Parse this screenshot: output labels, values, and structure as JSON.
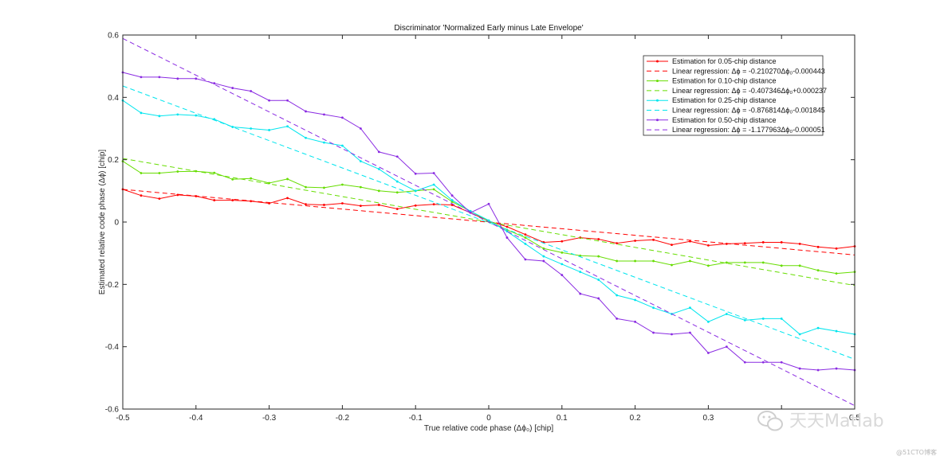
{
  "chart_data": {
    "type": "line",
    "title": "Discriminator 'Normalized Early minus Late Envelope'",
    "xlabel": "True relative code phase (Δϕ₀) [chip]",
    "ylabel": "Estimated relative code phase (Δϕ) [chip]",
    "xlim": [
      -0.5,
      0.5
    ],
    "ylim": [
      -0.6,
      0.6
    ],
    "xticks": [
      -0.5,
      -0.4,
      -0.3,
      -0.2,
      -0.1,
      0,
      0.1,
      0.2,
      0.3,
      0.4,
      0.5
    ],
    "xtick_labels": [
      "-0.5",
      "-0.4",
      "-0.3",
      "-0.2",
      "-0.1",
      "0",
      "0.1",
      "0.2",
      "0.3",
      "",
      "0.5"
    ],
    "yticks": [
      -0.6,
      -0.4,
      -0.2,
      0,
      0.2,
      0.4,
      0.6
    ],
    "ytick_labels": [
      "-0.6",
      "-0.4",
      "-0.2",
      "0",
      "0.2",
      "0.4",
      "0.6"
    ],
    "grid": false,
    "legend_position": "top-right",
    "x": [
      -0.5,
      -0.475,
      -0.45,
      -0.425,
      -0.4,
      -0.375,
      -0.35,
      -0.325,
      -0.3,
      -0.275,
      -0.25,
      -0.225,
      -0.2,
      -0.175,
      -0.15,
      -0.125,
      -0.1,
      -0.075,
      -0.05,
      -0.025,
      0,
      0.025,
      0.05,
      0.075,
      0.1,
      0.125,
      0.15,
      0.175,
      0.2,
      0.225,
      0.25,
      0.275,
      0.3,
      0.325,
      0.35,
      0.375,
      0.4,
      0.425,
      0.45,
      0.475,
      0.5
    ],
    "series": [
      {
        "name": "Estimation for 0.05-chip distance",
        "kind": "estimation",
        "color": "#ff0000",
        "markers": true,
        "values": [
          0.105,
          0.085,
          0.075,
          0.087,
          0.083,
          0.07,
          0.07,
          0.067,
          0.06,
          0.077,
          0.057,
          0.055,
          0.06,
          0.052,
          0.055,
          0.042,
          0.053,
          0.057,
          0.055,
          0.03,
          0.003,
          -0.015,
          -0.04,
          -0.065,
          -0.062,
          -0.05,
          -0.055,
          -0.068,
          -0.06,
          -0.057,
          -0.073,
          -0.062,
          -0.075,
          -0.07,
          -0.068,
          -0.065,
          -0.065,
          -0.07,
          -0.08,
          -0.085,
          -0.078
        ]
      },
      {
        "name": "Linear regression: Δϕ = -0.210270Δϕ₀-0.000443",
        "kind": "regression",
        "color": "#ff0000",
        "slope": -0.21027,
        "intercept": -0.000443
      },
      {
        "name": "Estimation for 0.10-chip distance",
        "kind": "estimation",
        "color": "#66dd00",
        "markers": true,
        "values": [
          0.195,
          0.157,
          0.157,
          0.162,
          0.163,
          0.158,
          0.137,
          0.14,
          0.125,
          0.138,
          0.112,
          0.11,
          0.12,
          0.112,
          0.1,
          0.095,
          0.1,
          0.105,
          0.065,
          0.035,
          0.003,
          -0.025,
          -0.05,
          -0.085,
          -0.098,
          -0.108,
          -0.11,
          -0.125,
          -0.125,
          -0.125,
          -0.138,
          -0.125,
          -0.14,
          -0.13,
          -0.13,
          -0.13,
          -0.14,
          -0.14,
          -0.155,
          -0.165,
          -0.16
        ]
      },
      {
        "name": "Linear regression: Δϕ = -0.407346Δϕ₀+0.000237",
        "kind": "regression",
        "color": "#66dd00",
        "slope": -0.407346,
        "intercept": 0.000237
      },
      {
        "name": "Estimation for 0.25-chip distance",
        "kind": "estimation",
        "color": "#00e5ee",
        "markers": true,
        "values": [
          0.39,
          0.35,
          0.34,
          0.345,
          0.342,
          0.33,
          0.305,
          0.3,
          0.295,
          0.307,
          0.27,
          0.255,
          0.245,
          0.195,
          0.17,
          0.13,
          0.1,
          0.12,
          0.07,
          0.035,
          0.005,
          -0.03,
          -0.07,
          -0.11,
          -0.135,
          -0.16,
          -0.185,
          -0.235,
          -0.25,
          -0.275,
          -0.295,
          -0.275,
          -0.32,
          -0.295,
          -0.315,
          -0.31,
          -0.31,
          -0.36,
          -0.34,
          -0.35,
          -0.36
        ]
      },
      {
        "name": "Linear regression: Δϕ = -0.876814Δϕ₀-0.001845",
        "kind": "regression",
        "color": "#00e5ee",
        "slope": -0.876814,
        "intercept": -0.001845
      },
      {
        "name": "Estimation for 0.50-chip distance",
        "kind": "estimation",
        "color": "#8a2be2",
        "markers": true,
        "values": [
          0.48,
          0.465,
          0.465,
          0.46,
          0.46,
          0.445,
          0.43,
          0.42,
          0.39,
          0.39,
          0.355,
          0.345,
          0.335,
          0.3,
          0.225,
          0.21,
          0.155,
          0.157,
          0.085,
          0.03,
          0.058,
          -0.05,
          -0.12,
          -0.125,
          -0.17,
          -0.23,
          -0.245,
          -0.31,
          -0.32,
          -0.355,
          -0.36,
          -0.355,
          -0.42,
          -0.4,
          -0.45,
          -0.45,
          -0.45,
          -0.47,
          -0.475,
          -0.47,
          -0.475
        ]
      },
      {
        "name": "Linear regression: Δϕ = -1.177963Δϕ₀-0.000051",
        "kind": "regression",
        "color": "#8a2be2",
        "slope": -1.177963,
        "intercept": -5.1e-05
      }
    ]
  },
  "watermark": {
    "channel_text": "天天Matlab",
    "site_text": "@51CTO博客"
  }
}
